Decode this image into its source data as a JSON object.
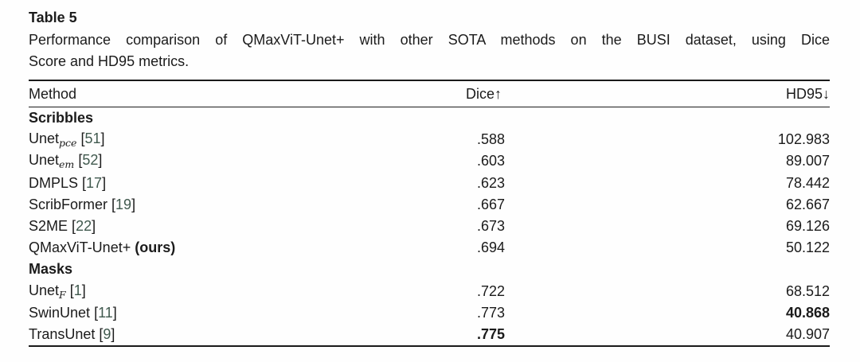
{
  "table_label": "Table 5",
  "caption": {
    "line1": "Performance comparison of QMaxViT-Unet+ with other SOTA methods on the BUSI dataset, using Dice",
    "line2": "Score and HD95 metrics."
  },
  "colors": {
    "text": "#1b1b1b",
    "rule": "#1a1a1a",
    "citation": "#40594e"
  },
  "table": {
    "headers": {
      "method": "Method",
      "dice": "Dice↑",
      "hd95": "HD95↓"
    },
    "rows": [
      {
        "kind": "section",
        "label": "Scribbles"
      },
      {
        "kind": "data",
        "name": "Unet",
        "sub": "pce",
        "cite": "51",
        "dice": ".588",
        "hd95": "102.983",
        "bold_dice": false,
        "bold_hd95": false,
        "ours": false
      },
      {
        "kind": "data",
        "name": "Unet",
        "sub": "em",
        "cite": "52",
        "dice": ".603",
        "hd95": "89.007",
        "bold_dice": false,
        "bold_hd95": false,
        "ours": false
      },
      {
        "kind": "data",
        "name": "DMPLS",
        "sub": "",
        "cite": "17",
        "dice": ".623",
        "hd95": "78.442",
        "bold_dice": false,
        "bold_hd95": false,
        "ours": false
      },
      {
        "kind": "data",
        "name": "ScribFormer",
        "sub": "",
        "cite": "19",
        "dice": ".667",
        "hd95": "62.667",
        "bold_dice": false,
        "bold_hd95": false,
        "ours": false
      },
      {
        "kind": "data",
        "name": "S2ME",
        "sub": "",
        "cite": "22",
        "dice": ".673",
        "hd95": "69.126",
        "bold_dice": false,
        "bold_hd95": false,
        "ours": false
      },
      {
        "kind": "data",
        "name": "QMaxViT-Unet+",
        "sub": "",
        "cite": "",
        "dice": ".694",
        "hd95": "50.122",
        "bold_dice": false,
        "bold_hd95": false,
        "ours": true,
        "ours_label": "(ours)"
      },
      {
        "kind": "section",
        "label": "Masks"
      },
      {
        "kind": "data",
        "name": "Unet",
        "sub": "F",
        "cite": "1",
        "dice": ".722",
        "hd95": "68.512",
        "bold_dice": false,
        "bold_hd95": false,
        "ours": false
      },
      {
        "kind": "data",
        "name": "SwinUnet",
        "sub": "",
        "cite": "11",
        "dice": ".773",
        "hd95": "40.868",
        "bold_dice": false,
        "bold_hd95": true,
        "ours": false
      },
      {
        "kind": "data",
        "name": "TransUnet",
        "sub": "",
        "cite": "9",
        "dice": ".775",
        "hd95": "40.907",
        "bold_dice": true,
        "bold_hd95": false,
        "ours": false
      }
    ]
  }
}
